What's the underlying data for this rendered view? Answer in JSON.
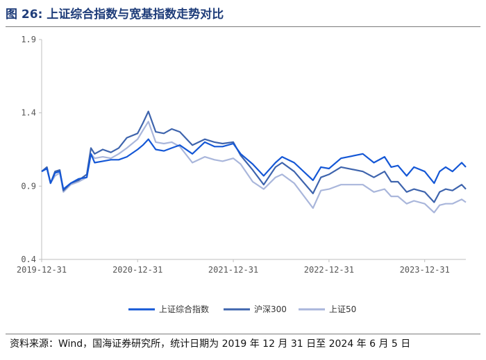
{
  "title": "图 26:  上证综合指数与宽基指数走势对比",
  "source": "资料来源：Wind，国海证券研究所，统计日期为 2019 年 12 月 31 日至 2024 年 6 月 5 日",
  "chart_data": {
    "type": "line",
    "ylim": [
      0.4,
      1.9
    ],
    "yticks": [
      "1.9",
      "1.4",
      "0.9",
      "0.4"
    ],
    "x_tick_labels": [
      "2019-12-31",
      "2020-12-31",
      "2021-12-31",
      "2022-12-31",
      "2023-12-31"
    ],
    "x_start": "2019-12-31",
    "x_end": "2024-06-05",
    "grid": false,
    "legend_position": "bottom",
    "series": [
      {
        "name": "上证综合指数",
        "color": "#1457d6",
        "points": [
          [
            "2019-12-31",
            1.0
          ],
          [
            "2020-01-20",
            1.02
          ],
          [
            "2020-02-03",
            0.92
          ],
          [
            "2020-02-20",
            0.99
          ],
          [
            "2020-03-09",
            1.0
          ],
          [
            "2020-03-23",
            0.88
          ],
          [
            "2020-04-20",
            0.92
          ],
          [
            "2020-05-20",
            0.95
          ],
          [
            "2020-06-20",
            0.96
          ],
          [
            "2020-07-06",
            1.12
          ],
          [
            "2020-07-20",
            1.06
          ],
          [
            "2020-08-20",
            1.07
          ],
          [
            "2020-09-20",
            1.08
          ],
          [
            "2020-10-20",
            1.08
          ],
          [
            "2020-11-20",
            1.1
          ],
          [
            "2020-12-31",
            1.15
          ],
          [
            "2021-01-20",
            1.18
          ],
          [
            "2021-02-10",
            1.22
          ],
          [
            "2021-03-10",
            1.15
          ],
          [
            "2021-04-10",
            1.14
          ],
          [
            "2021-05-10",
            1.16
          ],
          [
            "2021-06-10",
            1.18
          ],
          [
            "2021-07-28",
            1.12
          ],
          [
            "2021-09-13",
            1.2
          ],
          [
            "2021-10-20",
            1.17
          ],
          [
            "2021-11-20",
            1.17
          ],
          [
            "2021-12-31",
            1.19
          ],
          [
            "2022-01-28",
            1.12
          ],
          [
            "2022-03-15",
            1.05
          ],
          [
            "2022-04-26",
            0.97
          ],
          [
            "2022-06-10",
            1.06
          ],
          [
            "2022-07-05",
            1.1
          ],
          [
            "2022-08-20",
            1.06
          ],
          [
            "2022-10-31",
            0.94
          ],
          [
            "2022-11-30",
            1.03
          ],
          [
            "2022-12-31",
            1.02
          ],
          [
            "2023-02-15",
            1.09
          ],
          [
            "2023-05-09",
            1.12
          ],
          [
            "2023-06-20",
            1.06
          ],
          [
            "2023-07-31",
            1.1
          ],
          [
            "2023-08-25",
            1.03
          ],
          [
            "2023-09-20",
            1.04
          ],
          [
            "2023-10-23",
            0.97
          ],
          [
            "2023-11-20",
            1.03
          ],
          [
            "2023-12-31",
            1.0
          ],
          [
            "2024-02-05",
            0.92
          ],
          [
            "2024-02-26",
            1.0
          ],
          [
            "2024-03-20",
            1.03
          ],
          [
            "2024-04-15",
            1.0
          ],
          [
            "2024-05-20",
            1.06
          ],
          [
            "2024-06-05",
            1.03
          ]
        ]
      },
      {
        "name": "沪深300",
        "color": "#3e64ad",
        "points": [
          [
            "2019-12-31",
            1.0
          ],
          [
            "2020-01-20",
            1.03
          ],
          [
            "2020-02-03",
            0.92
          ],
          [
            "2020-02-20",
            1.0
          ],
          [
            "2020-03-09",
            1.01
          ],
          [
            "2020-03-23",
            0.87
          ],
          [
            "2020-04-20",
            0.92
          ],
          [
            "2020-05-20",
            0.94
          ],
          [
            "2020-06-20",
            0.98
          ],
          [
            "2020-07-06",
            1.16
          ],
          [
            "2020-07-20",
            1.12
          ],
          [
            "2020-08-20",
            1.15
          ],
          [
            "2020-09-20",
            1.13
          ],
          [
            "2020-10-20",
            1.16
          ],
          [
            "2020-11-20",
            1.23
          ],
          [
            "2020-12-31",
            1.26
          ],
          [
            "2021-01-20",
            1.33
          ],
          [
            "2021-02-10",
            1.41
          ],
          [
            "2021-03-10",
            1.27
          ],
          [
            "2021-04-10",
            1.26
          ],
          [
            "2021-05-10",
            1.29
          ],
          [
            "2021-06-10",
            1.27
          ],
          [
            "2021-07-28",
            1.18
          ],
          [
            "2021-09-13",
            1.22
          ],
          [
            "2021-10-20",
            1.2
          ],
          [
            "2021-11-20",
            1.19
          ],
          [
            "2021-12-31",
            1.2
          ],
          [
            "2022-01-28",
            1.11
          ],
          [
            "2022-03-15",
            1.01
          ],
          [
            "2022-04-26",
            0.91
          ],
          [
            "2022-06-10",
            1.03
          ],
          [
            "2022-07-05",
            1.06
          ],
          [
            "2022-08-20",
            1.0
          ],
          [
            "2022-10-31",
            0.85
          ],
          [
            "2022-11-30",
            0.96
          ],
          [
            "2022-12-31",
            0.98
          ],
          [
            "2023-02-15",
            1.03
          ],
          [
            "2023-05-09",
            1.0
          ],
          [
            "2023-06-20",
            0.96
          ],
          [
            "2023-07-31",
            1.0
          ],
          [
            "2023-08-25",
            0.93
          ],
          [
            "2023-09-20",
            0.93
          ],
          [
            "2023-10-23",
            0.86
          ],
          [
            "2023-11-20",
            0.88
          ],
          [
            "2023-12-31",
            0.86
          ],
          [
            "2024-02-05",
            0.79
          ],
          [
            "2024-02-26",
            0.86
          ],
          [
            "2024-03-20",
            0.88
          ],
          [
            "2024-04-15",
            0.87
          ],
          [
            "2024-05-20",
            0.91
          ],
          [
            "2024-06-05",
            0.88
          ]
        ]
      },
      {
        "name": "上证50",
        "color": "#a9b6db",
        "points": [
          [
            "2019-12-31",
            1.0
          ],
          [
            "2020-01-20",
            1.02
          ],
          [
            "2020-02-03",
            0.92
          ],
          [
            "2020-02-20",
            0.97
          ],
          [
            "2020-03-09",
            0.99
          ],
          [
            "2020-03-23",
            0.86
          ],
          [
            "2020-04-20",
            0.91
          ],
          [
            "2020-05-20",
            0.93
          ],
          [
            "2020-06-20",
            0.96
          ],
          [
            "2020-07-06",
            1.12
          ],
          [
            "2020-07-20",
            1.09
          ],
          [
            "2020-08-20",
            1.1
          ],
          [
            "2020-09-20",
            1.09
          ],
          [
            "2020-10-20",
            1.12
          ],
          [
            "2020-11-20",
            1.16
          ],
          [
            "2020-12-31",
            1.22
          ],
          [
            "2021-01-20",
            1.28
          ],
          [
            "2021-02-10",
            1.34
          ],
          [
            "2021-03-10",
            1.2
          ],
          [
            "2021-04-10",
            1.19
          ],
          [
            "2021-05-10",
            1.2
          ],
          [
            "2021-06-10",
            1.17
          ],
          [
            "2021-07-28",
            1.06
          ],
          [
            "2021-09-13",
            1.1
          ],
          [
            "2021-10-20",
            1.08
          ],
          [
            "2021-11-20",
            1.07
          ],
          [
            "2021-12-31",
            1.09
          ],
          [
            "2022-01-28",
            1.05
          ],
          [
            "2022-03-15",
            0.93
          ],
          [
            "2022-04-26",
            0.88
          ],
          [
            "2022-06-10",
            0.96
          ],
          [
            "2022-07-05",
            0.98
          ],
          [
            "2022-08-20",
            0.92
          ],
          [
            "2022-10-31",
            0.75
          ],
          [
            "2022-11-30",
            0.87
          ],
          [
            "2022-12-31",
            0.88
          ],
          [
            "2023-02-15",
            0.91
          ],
          [
            "2023-05-09",
            0.91
          ],
          [
            "2023-06-20",
            0.86
          ],
          [
            "2023-07-31",
            0.88
          ],
          [
            "2023-08-25",
            0.83
          ],
          [
            "2023-09-20",
            0.83
          ],
          [
            "2023-10-23",
            0.78
          ],
          [
            "2023-11-20",
            0.8
          ],
          [
            "2023-12-31",
            0.78
          ],
          [
            "2024-02-05",
            0.72
          ],
          [
            "2024-02-26",
            0.77
          ],
          [
            "2024-03-20",
            0.78
          ],
          [
            "2024-04-15",
            0.78
          ],
          [
            "2024-05-20",
            0.81
          ],
          [
            "2024-06-05",
            0.79
          ]
        ]
      }
    ]
  }
}
